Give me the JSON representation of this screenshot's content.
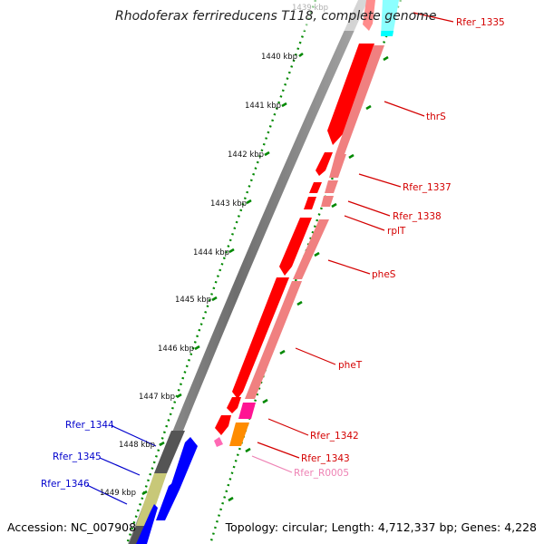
{
  "title": "Rhodoferax ferrireducens T118, complete genome",
  "top_tick_label": "1439 kbp",
  "footer": {
    "accession": "Accession: NC_007908",
    "topology": "Topology: circular; Length: 4,712,337 bp; Genes: 4,228"
  },
  "ticks": [
    "1440 kbp",
    "1441 kbp",
    "1442 kbp",
    "1443 kbp",
    "1444 kbp",
    "1445 kbp",
    "1446 kbp",
    "1447 kbp",
    "1448 kbp",
    "1449 kbp"
  ],
  "colors": {
    "forward_cds": "#ff0000",
    "forward_gene": "#f08080",
    "trna": "#ff1493",
    "misc": "#ff8c00",
    "rrna": "#ff69b4",
    "other": "#00ffff",
    "reverse_cds": "#0000ff",
    "reverse_gene_a": "#555555",
    "reverse_gene_b": "#c8c878",
    "backbone": "#808080",
    "forward_label": "#d40000",
    "reverse_label": "#0000cc",
    "pink_label": "#ee82b4",
    "tick_mark": "#008800"
  },
  "genes": [
    {
      "label": "Rfer_1335",
      "strand": "forward",
      "feature": "other"
    },
    {
      "label": "thrS",
      "strand": "forward",
      "feature": "cds"
    },
    {
      "label": "Rfer_1337",
      "strand": "forward",
      "feature": "cds"
    },
    {
      "label": "Rfer_1338",
      "strand": "forward",
      "feature": "cds"
    },
    {
      "label": "rplT",
      "strand": "forward",
      "feature": "cds"
    },
    {
      "label": "pheS",
      "strand": "forward",
      "feature": "cds"
    },
    {
      "label": "pheT",
      "strand": "forward",
      "feature": "cds"
    },
    {
      "label": "Rfer_1342",
      "strand": "forward",
      "feature": "trna"
    },
    {
      "label": "Rfer_1343",
      "strand": "forward",
      "feature": "misc"
    },
    {
      "label": "Rfer_R0005",
      "strand": "forward",
      "feature": "rrna"
    },
    {
      "label": "Rfer_1344",
      "strand": "reverse",
      "feature": "cds"
    },
    {
      "label": "Rfer_1345",
      "strand": "reverse",
      "feature": "cds"
    },
    {
      "label": "Rfer_1346",
      "strand": "reverse",
      "feature": "cds"
    }
  ]
}
